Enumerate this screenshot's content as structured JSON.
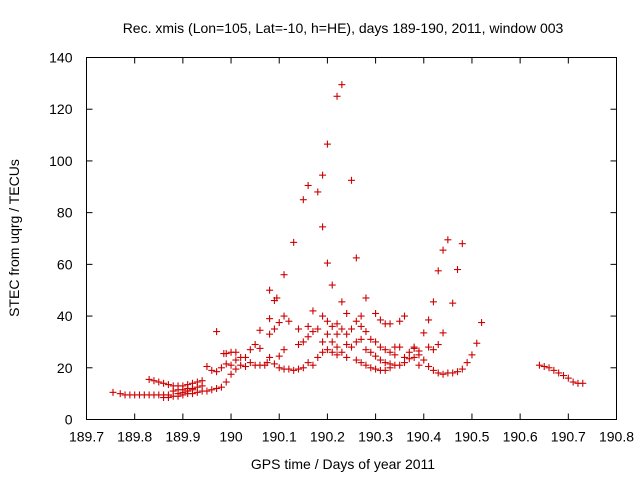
{
  "chart_data": {
    "type": "scatter",
    "title": "Rec. xmis (Lon=105, Lat=-10, h=HE), days 189-190, 2011, window 003",
    "xlabel": "GPS time / Days of year 2011",
    "ylabel": "STEC from uqrg / TECUs",
    "xlim": [
      189.7,
      190.8
    ],
    "ylim": [
      0,
      140
    ],
    "xticks": [
      "189.7",
      "189.8",
      "189.9",
      "190",
      "190.1",
      "190.2",
      "190.3",
      "190.4",
      "190.5",
      "190.6",
      "190.7",
      "190.8"
    ],
    "yticks": [
      "0",
      "20",
      "40",
      "60",
      "80",
      "100",
      "120",
      "140"
    ],
    "grid": false,
    "legend": "none",
    "marker": "+",
    "color": "#cc0000",
    "points": [
      [
        189.755,
        10.5
      ],
      [
        189.77,
        10
      ],
      [
        189.78,
        9.5
      ],
      [
        189.79,
        9.5
      ],
      [
        189.8,
        9.5
      ],
      [
        189.81,
        9.5
      ],
      [
        189.82,
        9.5
      ],
      [
        189.83,
        9.5
      ],
      [
        189.84,
        9.5
      ],
      [
        189.85,
        9.5
      ],
      [
        189.86,
        9.5
      ],
      [
        189.87,
        9.5
      ],
      [
        189.83,
        15.5
      ],
      [
        189.84,
        15
      ],
      [
        189.85,
        14.5
      ],
      [
        189.86,
        14
      ],
      [
        189.87,
        13.5
      ],
      [
        189.88,
        13
      ],
      [
        189.89,
        13
      ],
      [
        189.9,
        13
      ],
      [
        189.91,
        13.5
      ],
      [
        189.92,
        14
      ],
      [
        189.93,
        14.5
      ],
      [
        189.94,
        15
      ],
      [
        189.86,
        8.5
      ],
      [
        189.87,
        8.5
      ],
      [
        189.88,
        9
      ],
      [
        189.89,
        9
      ],
      [
        189.9,
        9.5
      ],
      [
        189.91,
        10
      ],
      [
        189.92,
        10
      ],
      [
        189.93,
        10.5
      ],
      [
        189.94,
        11
      ],
      [
        189.95,
        11
      ],
      [
        189.96,
        11.5
      ],
      [
        189.97,
        12
      ],
      [
        189.98,
        12.5
      ],
      [
        189.88,
        11
      ],
      [
        189.89,
        11.5
      ],
      [
        189.9,
        11.5
      ],
      [
        189.91,
        12
      ],
      [
        189.92,
        12
      ],
      [
        189.93,
        12.5
      ],
      [
        189.94,
        13
      ],
      [
        189.89,
        10
      ],
      [
        189.9,
        10.5
      ],
      [
        189.91,
        11
      ],
      [
        189.92,
        11.5
      ],
      [
        189.95,
        20.5
      ],
      [
        189.96,
        19
      ],
      [
        189.97,
        18.5
      ],
      [
        189.97,
        34
      ],
      [
        189.98,
        20
      ],
      [
        189.99,
        21.5
      ],
      [
        189.985,
        25.5
      ],
      [
        189.99,
        25.5
      ],
      [
        189.99,
        14.5
      ],
      [
        190.0,
        17.5
      ],
      [
        190.0,
        21
      ],
      [
        190.0,
        26
      ],
      [
        190.01,
        19.5
      ],
      [
        190.01,
        23
      ],
      [
        190.01,
        26
      ],
      [
        190.02,
        21
      ],
      [
        190.02,
        24
      ],
      [
        190.03,
        20.5
      ],
      [
        190.03,
        24
      ],
      [
        190.04,
        22
      ],
      [
        190.04,
        27
      ],
      [
        190.05,
        21
      ],
      [
        190.05,
        29
      ],
      [
        190.06,
        21
      ],
      [
        190.06,
        27.5
      ],
      [
        190.06,
        34.5
      ],
      [
        190.07,
        21
      ],
      [
        190.075,
        22
      ],
      [
        190.08,
        24
      ],
      [
        190.08,
        33
      ],
      [
        190.08,
        39
      ],
      [
        190.08,
        50
      ],
      [
        190.09,
        21.5
      ],
      [
        190.09,
        35
      ],
      [
        190.09,
        46
      ],
      [
        190.095,
        47
      ],
      [
        190.1,
        20
      ],
      [
        190.1,
        24.5
      ],
      [
        190.1,
        37.5
      ],
      [
        190.11,
        19.5
      ],
      [
        190.11,
        27
      ],
      [
        190.11,
        40
      ],
      [
        190.11,
        56
      ],
      [
        190.12,
        19.5
      ],
      [
        190.12,
        38
      ],
      [
        190.13,
        19
      ],
      [
        190.13,
        68.5
      ],
      [
        190.14,
        19.5
      ],
      [
        190.14,
        29
      ],
      [
        190.14,
        35
      ],
      [
        190.15,
        20
      ],
      [
        190.15,
        30
      ],
      [
        190.15,
        85
      ],
      [
        190.16,
        22
      ],
      [
        190.16,
        32
      ],
      [
        190.16,
        36
      ],
      [
        190.16,
        90.5
      ],
      [
        190.17,
        21
      ],
      [
        190.17,
        34
      ],
      [
        190.17,
        42
      ],
      [
        190.18,
        24
      ],
      [
        190.18,
        35
      ],
      [
        190.18,
        88
      ],
      [
        190.19,
        26
      ],
      [
        190.19,
        30
      ],
      [
        190.19,
        40
      ],
      [
        190.19,
        74.5
      ],
      [
        190.19,
        94.5
      ],
      [
        190.2,
        27
      ],
      [
        190.2,
        33
      ],
      [
        190.2,
        38
      ],
      [
        190.2,
        60.5
      ],
      [
        190.2,
        106.5
      ],
      [
        190.21,
        26
      ],
      [
        190.21,
        30
      ],
      [
        190.21,
        36
      ],
      [
        190.21,
        52
      ],
      [
        190.22,
        25
      ],
      [
        190.22,
        28
      ],
      [
        190.22,
        33
      ],
      [
        190.22,
        37
      ],
      [
        190.22,
        125
      ],
      [
        190.23,
        26
      ],
      [
        190.23,
        35
      ],
      [
        190.23,
        45.5
      ],
      [
        190.23,
        129.5
      ],
      [
        190.24,
        24
      ],
      [
        190.24,
        29
      ],
      [
        190.24,
        33
      ],
      [
        190.24,
        41
      ],
      [
        190.25,
        28
      ],
      [
        190.25,
        35
      ],
      [
        190.25,
        92.5
      ],
      [
        190.26,
        23
      ],
      [
        190.26,
        30
      ],
      [
        190.26,
        38
      ],
      [
        190.26,
        62.5
      ],
      [
        190.27,
        22
      ],
      [
        190.27,
        31
      ],
      [
        190.27,
        36
      ],
      [
        190.27,
        40
      ],
      [
        190.28,
        21
      ],
      [
        190.28,
        27
      ],
      [
        190.28,
        34
      ],
      [
        190.28,
        47
      ],
      [
        190.29,
        20
      ],
      [
        190.29,
        26
      ],
      [
        190.29,
        31
      ],
      [
        190.3,
        19.5
      ],
      [
        190.3,
        24.5
      ],
      [
        190.3,
        30
      ],
      [
        190.3,
        41
      ],
      [
        190.31,
        19
      ],
      [
        190.31,
        23
      ],
      [
        190.31,
        28
      ],
      [
        190.31,
        38.5
      ],
      [
        190.32,
        19
      ],
      [
        190.32,
        22
      ],
      [
        190.32,
        27
      ],
      [
        190.32,
        37
      ],
      [
        190.33,
        20
      ],
      [
        190.33,
        21.5
      ],
      [
        190.33,
        26
      ],
      [
        190.33,
        37
      ],
      [
        190.34,
        21
      ],
      [
        190.34,
        25
      ],
      [
        190.34,
        28
      ],
      [
        190.35,
        21
      ],
      [
        190.35,
        28
      ],
      [
        190.35,
        38
      ],
      [
        190.36,
        22
      ],
      [
        190.36,
        24
      ],
      [
        190.36,
        40
      ],
      [
        190.37,
        23.5
      ],
      [
        190.37,
        26
      ],
      [
        190.38,
        24
      ],
      [
        190.38,
        28
      ],
      [
        190.38,
        27.5
      ],
      [
        190.39,
        21
      ],
      [
        190.39,
        25
      ],
      [
        190.39,
        26.5
      ],
      [
        190.4,
        23
      ],
      [
        190.4,
        33.5
      ],
      [
        190.41,
        20.5
      ],
      [
        190.41,
        28
      ],
      [
        190.41,
        38.5
      ],
      [
        190.42,
        19
      ],
      [
        190.42,
        27
      ],
      [
        190.42,
        45.5
      ],
      [
        190.43,
        18
      ],
      [
        190.43,
        29
      ],
      [
        190.43,
        57.5
      ],
      [
        190.44,
        17.5
      ],
      [
        190.44,
        33.5
      ],
      [
        190.44,
        65.5
      ],
      [
        190.45,
        18
      ],
      [
        190.45,
        69.5
      ],
      [
        190.46,
        18
      ],
      [
        190.46,
        45
      ],
      [
        190.47,
        18.5
      ],
      [
        190.47,
        58
      ],
      [
        190.48,
        19.5
      ],
      [
        190.48,
        68
      ],
      [
        190.49,
        22
      ],
      [
        190.5,
        25
      ],
      [
        190.51,
        29.5
      ],
      [
        190.52,
        37.5
      ],
      [
        190.64,
        21
      ],
      [
        190.65,
        20.5
      ],
      [
        190.66,
        20
      ],
      [
        190.67,
        19
      ],
      [
        190.68,
        18
      ],
      [
        190.69,
        17
      ],
      [
        190.7,
        16
      ],
      [
        190.71,
        14.5
      ],
      [
        190.72,
        14
      ],
      [
        190.73,
        14
      ]
    ]
  }
}
